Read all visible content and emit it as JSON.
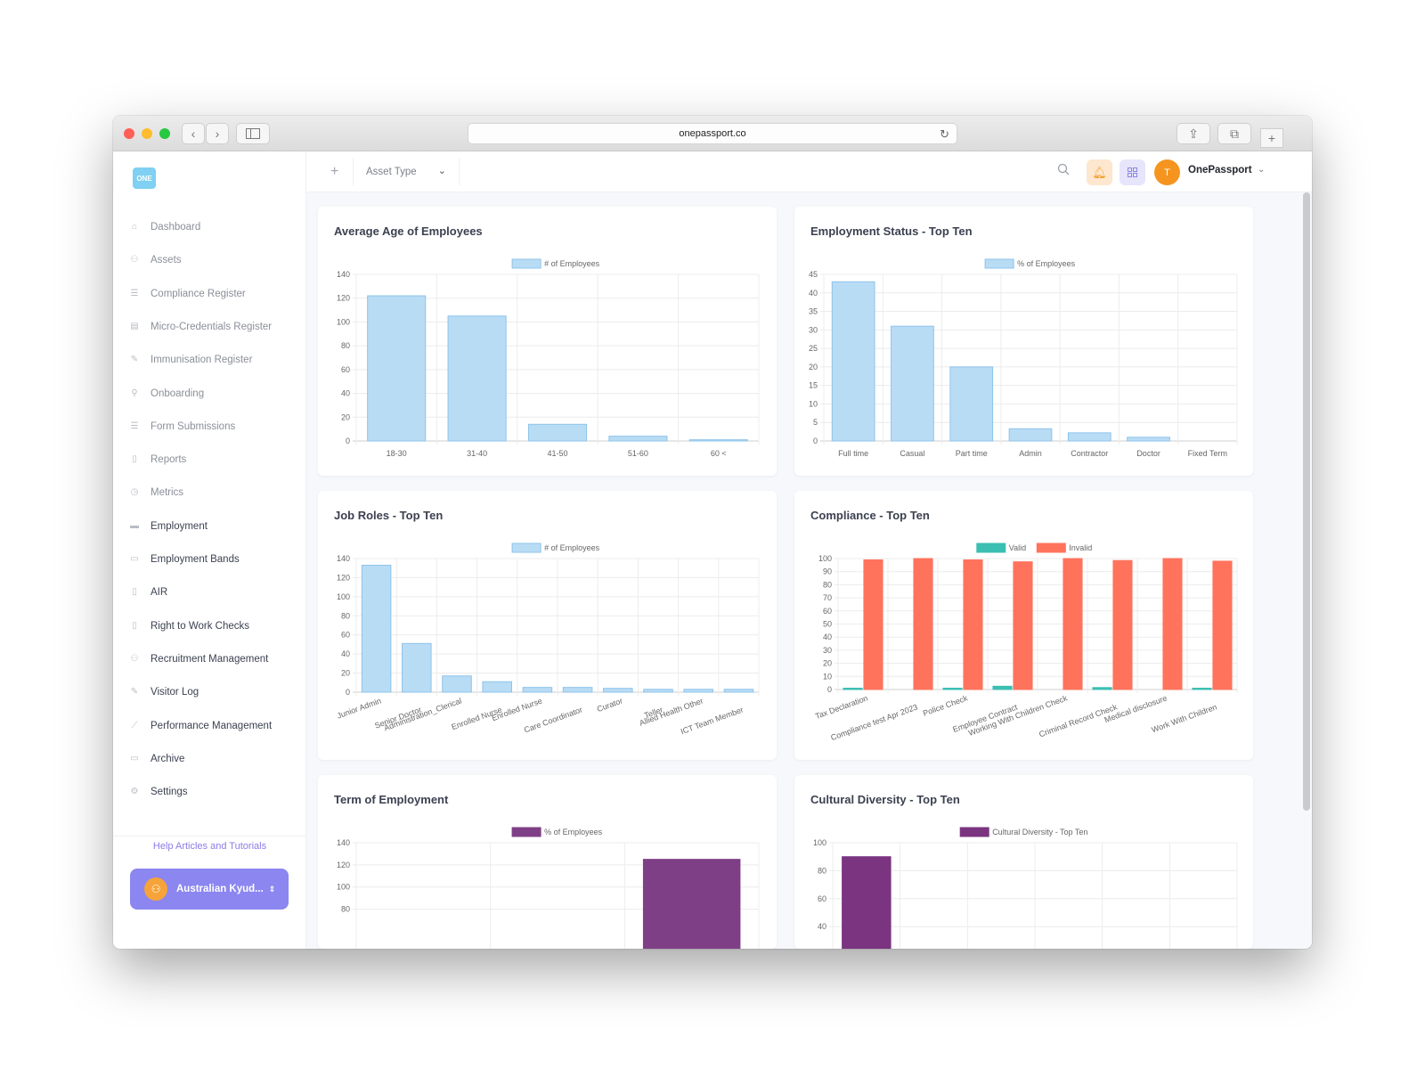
{
  "browser": {
    "url": "onepassport.co"
  },
  "sidebar": {
    "items": [
      {
        "label": "Dashboard",
        "icon": "home-icon",
        "dark": false
      },
      {
        "label": "Assets",
        "icon": "users-icon",
        "dark": false
      },
      {
        "label": "Compliance Register",
        "icon": "list-icon",
        "dark": false
      },
      {
        "label": "Micro-Credentials Register",
        "icon": "table-icon",
        "dark": false
      },
      {
        "label": "Immunisation Register",
        "icon": "syringe-icon",
        "dark": false
      },
      {
        "label": "Onboarding",
        "icon": "user-plus-icon",
        "dark": false
      },
      {
        "label": "Form Submissions",
        "icon": "list-icon",
        "dark": false
      },
      {
        "label": "Reports",
        "icon": "file-icon",
        "dark": false
      },
      {
        "label": "Metrics",
        "icon": "clock-icon",
        "dark": false
      },
      {
        "label": "Employment",
        "icon": "briefcase-icon",
        "dark": true
      },
      {
        "label": "Employment Bands",
        "icon": "folder-icon",
        "dark": true
      },
      {
        "label": "AIR",
        "icon": "document-icon",
        "dark": true
      },
      {
        "label": "Right to Work Checks",
        "icon": "clipboard-icon",
        "dark": true
      },
      {
        "label": "Recruitment Management",
        "icon": "users-icon",
        "dark": true
      },
      {
        "label": "Visitor Log",
        "icon": "pencil-icon",
        "dark": true
      },
      {
        "label": "Performance Management",
        "icon": "chart-icon",
        "dark": true
      },
      {
        "label": "Archive",
        "icon": "archive-icon",
        "dark": true
      },
      {
        "label": "Settings",
        "icon": "gear-icon",
        "dark": true
      }
    ],
    "logo_text": "ONE",
    "help_link": "Help Articles and Tutorials",
    "org_button": "Australian Kyud..."
  },
  "topbar": {
    "asset_select": "Asset Type",
    "user_initial": "T",
    "user_name": "OnePassport"
  },
  "cards": [
    {
      "title": "Average Age of Employees",
      "chart_data": {
        "type": "bar",
        "categories": [
          "18-30",
          "31-40",
          "41-50",
          "51-60",
          "60 <"
        ],
        "series": [
          {
            "name": "# of Employees",
            "values": [
              122,
              105,
              14,
              4,
              1
            ],
            "color": "#b9dcf5"
          }
        ],
        "ylim": [
          0,
          140
        ],
        "yticks": [
          0,
          20,
          40,
          60,
          80,
          100,
          120,
          140
        ],
        "legend_position": "top",
        "grid": true
      }
    },
    {
      "title": "Employment Status - Top Ten",
      "chart_data": {
        "type": "bar",
        "categories": [
          "Full time",
          "Casual",
          "Part time",
          "Admin",
          "Contractor",
          "Doctor",
          "Fixed Term"
        ],
        "series": [
          {
            "name": "% of Employees",
            "values": [
              43,
              31,
              20,
              3.3,
              2.2,
              1,
              0
            ],
            "color": "#b9dcf5"
          }
        ],
        "ylim": [
          0,
          45
        ],
        "yticks": [
          0,
          5,
          10,
          15,
          20,
          25,
          30,
          35,
          40,
          45
        ],
        "legend_position": "top",
        "grid": true
      }
    },
    {
      "title": "Job Roles - Top Ten",
      "chart_data": {
        "type": "bar",
        "categories": [
          "Junior Admin",
          "Senior Doctor",
          "Administration_Clerical",
          "Enrolled Nurse",
          "Enrolled Nurse",
          "Care Coordinator",
          "Curator",
          "Teller",
          "Allied Health Other",
          "ICT Team Member"
        ],
        "series": [
          {
            "name": "# of Employees",
            "values": [
              133,
              51,
              17,
              11,
              5,
              5,
              4,
              3,
              3,
              3
            ],
            "color": "#b9dcf5"
          }
        ],
        "ylim": [
          0,
          140
        ],
        "yticks": [
          0,
          20,
          40,
          60,
          80,
          100,
          120,
          140
        ],
        "legend_position": "top",
        "grid": true
      }
    },
    {
      "title": "Compliance - Top Ten",
      "chart_data": {
        "type": "bar",
        "categories": [
          "Tax Declaration",
          "Compliance test Apr 2023",
          "Police Check",
          "Employee Contract",
          "Working With Children Check",
          "Criminal Record Check",
          "Medical disclosure",
          "Work With Children"
        ],
        "series": [
          {
            "name": "Valid",
            "values": [
              1,
              0,
              1,
              2.5,
              0,
              1.5,
              0,
              1
            ],
            "color": "#3bbfb2"
          },
          {
            "name": "Invalid",
            "values": [
              99,
              100,
              99,
              97.5,
              100,
              98.5,
              100,
              98
            ],
            "color": "#ff735d"
          }
        ],
        "ylim": [
          0,
          100
        ],
        "yticks": [
          0,
          10,
          20,
          30,
          40,
          50,
          60,
          70,
          80,
          90,
          100
        ],
        "legend_position": "top",
        "grid": true
      }
    },
    {
      "title": "Term of Employment",
      "chart_data": {
        "type": "bar",
        "categories": [
          "",
          "",
          ""
        ],
        "series": [
          {
            "name": "% of Employees",
            "values": [
              0,
              0,
              125
            ],
            "color": "#7f3f86"
          }
        ],
        "ylim": [
          0,
          140
        ],
        "yticks": [
          80,
          100,
          120,
          140
        ],
        "legend_position": "top",
        "grid": true
      }
    },
    {
      "title": "Cultural Diversity - Top Ten",
      "chart_data": {
        "type": "bar",
        "categories": [
          "",
          "",
          "",
          "",
          "",
          ""
        ],
        "series": [
          {
            "name": "Cultural Diversity - Top Ten",
            "values": [
              90,
              0,
              0,
              0,
              0,
              0
            ],
            "color": "#7a3480"
          }
        ],
        "ylim": [
          0,
          100
        ],
        "yticks": [
          40,
          60,
          80,
          100
        ],
        "legend_position": "top",
        "grid": true
      }
    }
  ]
}
